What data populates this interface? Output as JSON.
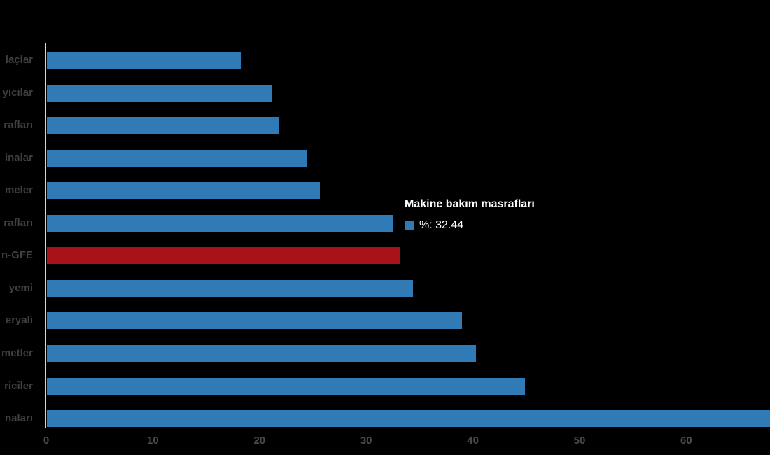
{
  "chart_data": {
    "type": "bar",
    "orientation": "horizontal",
    "title": "",
    "xlabel": "",
    "ylabel": "",
    "categories": [
      "laçlar",
      "yıcılar",
      "rafları",
      "inalar",
      "meler",
      "rafları",
      "n-GFE",
      "yemi",
      "eryali",
      "metler",
      "riciler",
      "naları"
    ],
    "values": [
      18.2,
      21.1,
      21.7,
      24.4,
      25.6,
      32.44,
      33.1,
      34.3,
      38.9,
      40.2,
      44.8,
      67.9
    ],
    "highlight_index": 6,
    "x_ticks": [
      "0",
      "10",
      "20",
      "30",
      "40",
      "50",
      "60"
    ],
    "x_tick_values": [
      0,
      10,
      20,
      30,
      40,
      50,
      60
    ],
    "xlim": [
      0,
      67.9
    ],
    "grid": false,
    "legend": false,
    "colors": {
      "bar": "#307bb6",
      "highlight": "#aa1219",
      "axis_line": "#ccd6eb",
      "category_label": "#3f3f3f",
      "tick_label": "#4c4c4c",
      "background": "#000000"
    }
  },
  "tooltip": {
    "title": "Makine bakım masrafları",
    "value_label": "%: 32.44",
    "swatch_color": "#307bb6"
  }
}
